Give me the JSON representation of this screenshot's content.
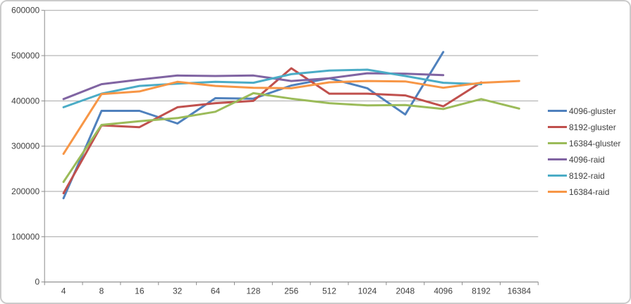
{
  "chart_data": {
    "type": "line",
    "title": "",
    "xlabel": "",
    "ylabel": "",
    "ylim": [
      0,
      600000
    ],
    "y_tick_interval": 100000,
    "y_tick_labels": [
      "0",
      "100000",
      "200000",
      "300000",
      "400000",
      "500000",
      "600000"
    ],
    "categories": [
      "4",
      "8",
      "16",
      "32",
      "64",
      "128",
      "256",
      "512",
      "1024",
      "2048",
      "4096",
      "8192",
      "16384"
    ],
    "grid": true,
    "legend_position": "right",
    "series": [
      {
        "name": "4096-gluster",
        "color": "#4F81BD",
        "values": [
          185000,
          378000,
          378000,
          350000,
          406000,
          405000,
          434000,
          450000,
          428000,
          370000,
          508000,
          null,
          null
        ]
      },
      {
        "name": "8192-gluster",
        "color": "#C0504D",
        "values": [
          196000,
          346000,
          342000,
          386000,
          395000,
          400000,
          472000,
          416000,
          416000,
          412000,
          388000,
          441000,
          null
        ]
      },
      {
        "name": "16384-gluster",
        "color": "#9BBB59",
        "values": [
          221000,
          347000,
          355000,
          362000,
          376000,
          417000,
          405000,
          395000,
          390000,
          391000,
          382000,
          404000,
          383000
        ]
      },
      {
        "name": "4096-raid",
        "color": "#8064A2",
        "values": [
          404000,
          437000,
          447000,
          456000,
          455000,
          456000,
          444000,
          450000,
          461000,
          460000,
          457000,
          null,
          null
        ]
      },
      {
        "name": "8192-raid",
        "color": "#4BACC6",
        "values": [
          386000,
          416000,
          433000,
          438000,
          442000,
          440000,
          459000,
          467000,
          469000,
          455000,
          440000,
          437000,
          null
        ]
      },
      {
        "name": "16384-raid",
        "color": "#F79646",
        "values": [
          283000,
          415000,
          421000,
          442000,
          433000,
          429000,
          428000,
          441000,
          444000,
          443000,
          429000,
          440000,
          444000
        ]
      }
    ]
  },
  "colors": {
    "background": "#ffffff",
    "gridline": "#a6a6a6",
    "axis": "#8c8c8c",
    "tick_text": "#3f3f3f",
    "frame_border": "#cbcbcb"
  }
}
